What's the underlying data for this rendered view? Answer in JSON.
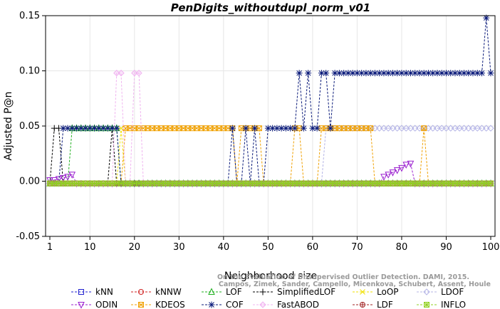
{
  "chart_data": {
    "type": "line",
    "title": "PenDigits_withoutdupl_norm_v01",
    "xlabel": "Neighborhood size",
    "ylabel": "Adjusted P@n",
    "xlim": [
      1,
      100
    ],
    "ylim": [
      -0.05,
      0.15
    ],
    "xticks": [
      1,
      10,
      20,
      30,
      40,
      50,
      60,
      70,
      80,
      90,
      100
    ],
    "yticks": [
      -0.05,
      0.0,
      0.05,
      0.1,
      0.15
    ],
    "ytick_labels": [
      "-0.05",
      "0.00",
      "0.05",
      "0.10",
      "0.15"
    ],
    "legend_placement": "bottom",
    "watermark": [
      "Campos, Zimek, Sander, Campello, Micenkova, Schubert, Assent, Houle",
      "On the Evaluation of Unsupervised Outlier Detection. DAMI, 2015."
    ],
    "series": [
      {
        "name": "kNN",
        "color": "#1f1fcf",
        "marker": "square",
        "points": [
          [
            1,
            -0.002
          ],
          [
            100,
            -0.002
          ]
        ]
      },
      {
        "name": "kNNW",
        "color": "#cf1f1f",
        "marker": "circle",
        "points": [
          [
            1,
            -0.002
          ],
          [
            100,
            -0.002
          ]
        ]
      },
      {
        "name": "LOF",
        "color": "#1faf1f",
        "marker": "triangle",
        "points": [
          [
            1,
            -0.002
          ],
          [
            5,
            -0.002
          ],
          [
            6,
            0.048
          ],
          [
            16,
            0.048
          ],
          [
            17,
            -0.002
          ],
          [
            100,
            -0.002
          ]
        ]
      },
      {
        "name": "SimplifiedLOF",
        "color": "#000000",
        "marker": "plus",
        "points": [
          [
            1,
            -0.002
          ],
          [
            2,
            0.048
          ],
          [
            3,
            0.048
          ],
          [
            4,
            -0.002
          ],
          [
            14,
            -0.002
          ],
          [
            15,
            0.048
          ],
          [
            16,
            -0.002
          ],
          [
            100,
            -0.002
          ]
        ]
      },
      {
        "name": "LoOP",
        "color": "#f0e000",
        "marker": "cross",
        "points": [
          [
            1,
            -0.002
          ],
          [
            16,
            -0.002
          ],
          [
            17,
            0.048
          ],
          [
            18,
            -0.002
          ],
          [
            100,
            -0.002
          ]
        ]
      },
      {
        "name": "LDOF",
        "color": "#b4b4e6",
        "marker": "diamond",
        "points": [
          [
            1,
            -0.002
          ],
          [
            62,
            -0.002
          ],
          [
            63,
            0.048
          ],
          [
            100,
            0.048
          ]
        ]
      },
      {
        "name": "ODIN",
        "color": "#9a1fcf",
        "marker": "triangle-down",
        "points": [
          [
            1,
            0.001
          ],
          [
            2,
            0.001
          ],
          [
            3,
            0.002
          ],
          [
            4,
            0.003
          ],
          [
            5,
            0.004
          ],
          [
            6,
            0.006
          ],
          [
            7,
            -0.002
          ],
          [
            75,
            -0.002
          ],
          [
            76,
            0.004
          ],
          [
            77,
            0.006
          ],
          [
            78,
            0.008
          ],
          [
            79,
            0.01
          ],
          [
            80,
            0.012
          ],
          [
            81,
            0.015
          ],
          [
            82,
            0.016
          ],
          [
            83,
            -0.002
          ],
          [
            100,
            -0.002
          ]
        ]
      },
      {
        "name": "KDEOS",
        "color": "#f0a000",
        "marker": "square-x",
        "points": [
          [
            1,
            -0.002
          ],
          [
            17,
            -0.002
          ],
          [
            18,
            0.048
          ],
          [
            42,
            0.048
          ],
          [
            43,
            -0.002
          ],
          [
            44,
            0.048
          ],
          [
            48,
            0.048
          ],
          [
            49,
            -0.002
          ],
          [
            55,
            -0.002
          ],
          [
            56,
            0.048
          ],
          [
            57,
            0.048
          ],
          [
            58,
            -0.002
          ],
          [
            61,
            -0.002
          ],
          [
            62,
            0.048
          ],
          [
            73,
            0.048
          ],
          [
            74,
            -0.002
          ],
          [
            84,
            -0.002
          ],
          [
            85,
            0.048
          ],
          [
            86,
            -0.002
          ],
          [
            100,
            -0.002
          ]
        ]
      },
      {
        "name": "COF",
        "color": "#0a1a7a",
        "marker": "star",
        "points": [
          [
            1,
            -0.002
          ],
          [
            3,
            -0.002
          ],
          [
            4,
            0.048
          ],
          [
            16,
            0.048
          ],
          [
            17,
            -0.002
          ],
          [
            41,
            -0.002
          ],
          [
            42,
            0.048
          ],
          [
            43,
            -0.002
          ],
          [
            44,
            -0.002
          ],
          [
            45,
            0.048
          ],
          [
            46,
            -0.002
          ],
          [
            47,
            0.048
          ],
          [
            48,
            -0.002
          ],
          [
            49,
            -0.002
          ],
          [
            50,
            0.048
          ],
          [
            56,
            0.048
          ],
          [
            57,
            0.098
          ],
          [
            58,
            0.048
          ],
          [
            59,
            0.098
          ],
          [
            60,
            0.048
          ],
          [
            61,
            0.048
          ],
          [
            62,
            0.098
          ],
          [
            63,
            0.098
          ],
          [
            64,
            0.048
          ],
          [
            65,
            0.098
          ],
          [
            98,
            0.098
          ],
          [
            99,
            0.148
          ],
          [
            100,
            0.098
          ]
        ]
      },
      {
        "name": "FastABOD",
        "color": "#f0b4f0",
        "marker": "diamond-fill",
        "points": [
          [
            1,
            -0.002
          ],
          [
            15,
            -0.002
          ],
          [
            16,
            0.098
          ],
          [
            17,
            0.098
          ],
          [
            18,
            -0.002
          ],
          [
            19,
            -0.002
          ],
          [
            20,
            0.098
          ],
          [
            21,
            0.098
          ],
          [
            22,
            -0.002
          ],
          [
            100,
            -0.002
          ]
        ]
      },
      {
        "name": "LDF",
        "color": "#a02020",
        "marker": "circle-plus",
        "points": [
          [
            1,
            -0.002
          ],
          [
            100,
            -0.002
          ]
        ]
      },
      {
        "name": "INFLO",
        "color": "#90d020",
        "marker": "square-star",
        "points": [
          [
            1,
            -0.002
          ],
          [
            100,
            -0.002
          ]
        ]
      }
    ]
  }
}
